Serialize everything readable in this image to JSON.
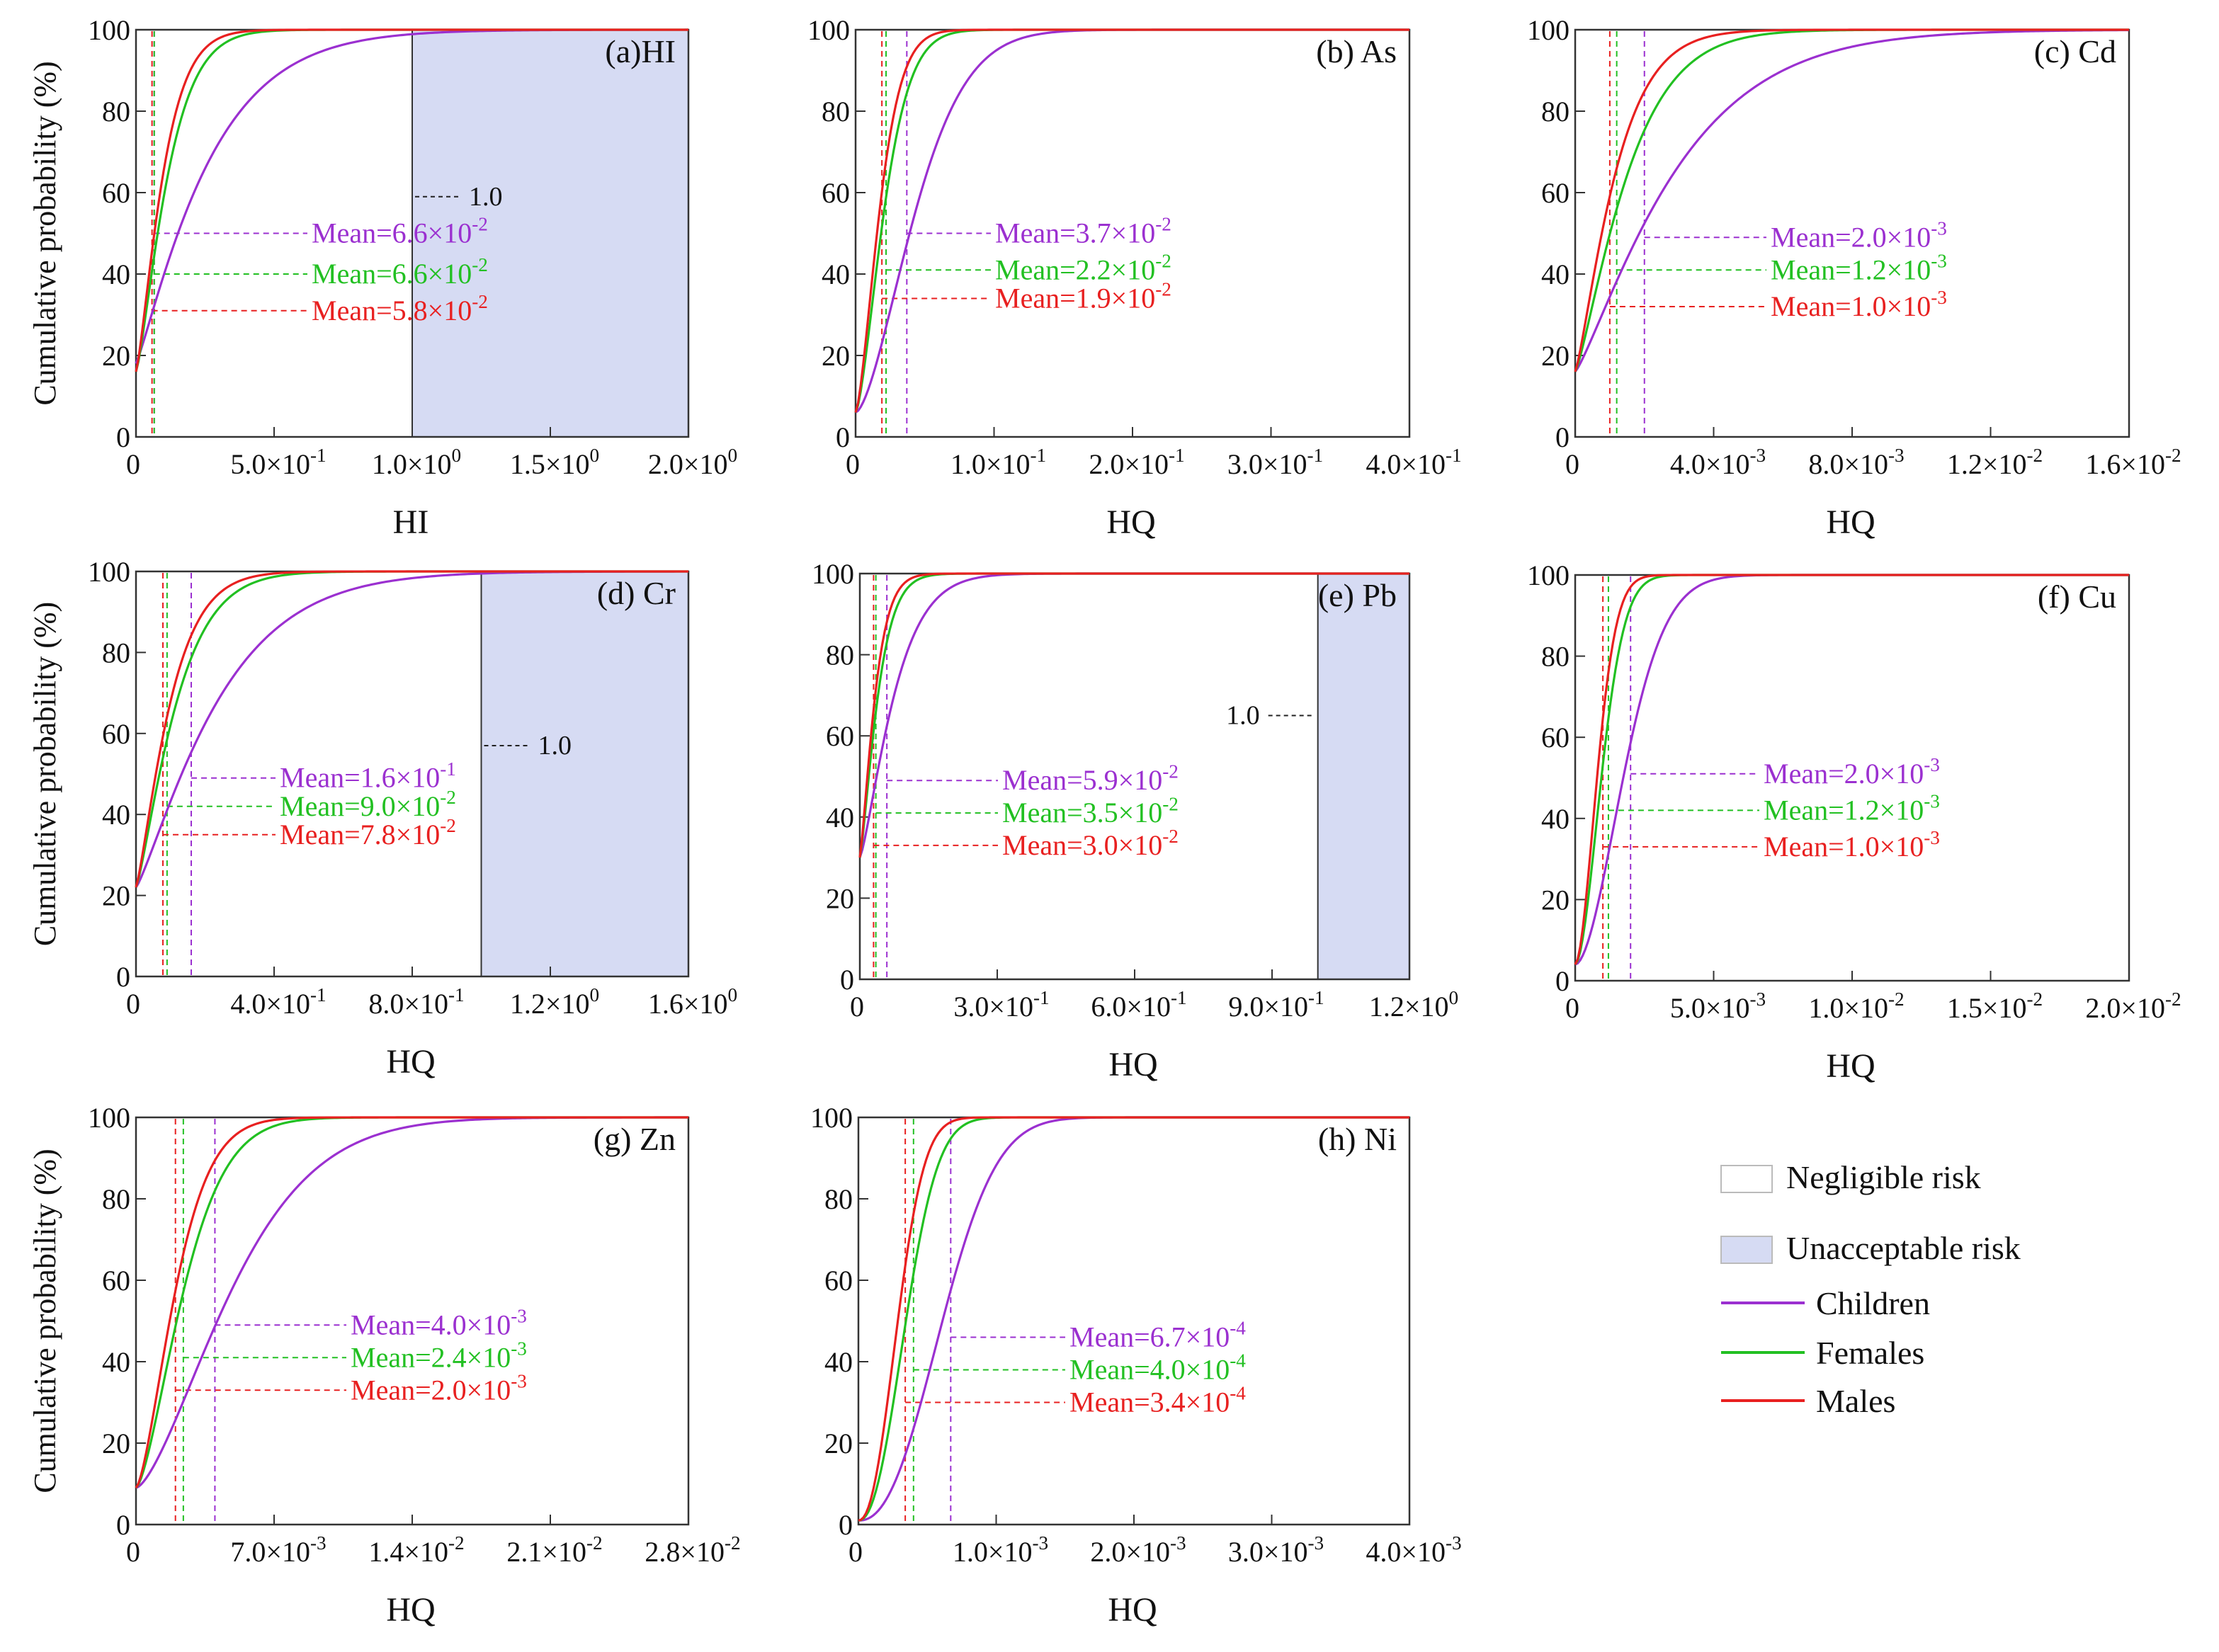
{
  "figure": {
    "series_colors": {
      "Children": "#9b30d0",
      "Females": "#22c022",
      "Males": "#e82020"
    },
    "risk_fill": "#d6dbf3",
    "legend": {
      "items": [
        {
          "label": "Negligible risk",
          "kind": "box",
          "fill": "#ffffff"
        },
        {
          "label": "Unacceptable risk",
          "kind": "box",
          "fill": "#d6dbf3"
        },
        {
          "label": "Children",
          "kind": "line",
          "color": "#9b30d0"
        },
        {
          "label": "Females",
          "kind": "line",
          "color": "#22c022"
        },
        {
          "label": "Males",
          "kind": "line",
          "color": "#e82020"
        }
      ]
    }
  },
  "chart_data": [
    {
      "type": "line",
      "id": "a",
      "title": "(a)HI",
      "xlabel": "HI",
      "ylabel": "Cumulative probability (%)",
      "xlim": [
        0,
        2.0
      ],
      "ylim": [
        0,
        100
      ],
      "xticks": [
        0,
        0.5,
        1.0,
        1.5,
        2.0
      ],
      "xtick_labels": [
        {
          "m": "0",
          "e": ""
        },
        {
          "m": "5.0×10",
          "e": "-1"
        },
        {
          "m": "1.0×10",
          "e": "0"
        },
        {
          "m": "1.5×10",
          "e": "0"
        },
        {
          "m": "2.0×10",
          "e": "0"
        }
      ],
      "yticks": [
        0,
        20,
        40,
        60,
        80,
        100
      ],
      "risk_region": [
        1.0,
        2.0
      ],
      "threshold_label": "1.0",
      "threshold_label_y": 59,
      "series": [
        {
          "name": "Children",
          "y0": 18,
          "mean": 0.066,
          "scale": 0.28,
          "shape": 1.15,
          "mean_y": 50,
          "mean_text": {
            "m": "Mean=6.6×10",
            "e": "-2"
          }
        },
        {
          "name": "Females",
          "y0": 16,
          "mean": 0.066,
          "scale": 0.13,
          "shape": 1.3,
          "mean_y": 40,
          "mean_text": {
            "m": "Mean=6.6×10",
            "e": "-2"
          }
        },
        {
          "name": "Males",
          "y0": 16,
          "mean": 0.058,
          "scale": 0.11,
          "shape": 1.3,
          "mean_y": 31,
          "mean_text": {
            "m": "Mean=5.8×10",
            "e": "-2"
          }
        }
      ]
    },
    {
      "type": "line",
      "id": "b",
      "title": "(b) As",
      "xlabel": "HQ",
      "ylabel": "",
      "xlim": [
        0,
        0.4
      ],
      "ylim": [
        0,
        100
      ],
      "xticks": [
        0,
        0.1,
        0.2,
        0.3,
        0.4
      ],
      "xtick_labels": [
        {
          "m": "0",
          "e": ""
        },
        {
          "m": "1.0×10",
          "e": "-1"
        },
        {
          "m": "2.0×10",
          "e": "-1"
        },
        {
          "m": "3.0×10",
          "e": "-1"
        },
        {
          "m": "4.0×10",
          "e": "-1"
        }
      ],
      "yticks": [
        0,
        20,
        40,
        60,
        80,
        100
      ],
      "series": [
        {
          "name": "Children",
          "y0": 6,
          "mean": 0.037,
          "scale": 0.052,
          "shape": 1.6,
          "mean_y": 50,
          "mean_text": {
            "m": "Mean=3.7×10",
            "e": "-2"
          }
        },
        {
          "name": "Females",
          "y0": 6,
          "mean": 0.022,
          "scale": 0.025,
          "shape": 1.5,
          "mean_y": 41,
          "mean_text": {
            "m": "Mean=2.2×10",
            "e": "-2"
          }
        },
        {
          "name": "Males",
          "y0": 6,
          "mean": 0.019,
          "scale": 0.021,
          "shape": 1.5,
          "mean_y": 34,
          "mean_text": {
            "m": "Mean=1.9×10",
            "e": "-2"
          }
        }
      ]
    },
    {
      "type": "line",
      "id": "c",
      "title": "(c) Cd",
      "xlabel": "HQ",
      "ylabel": "",
      "xlim": [
        0,
        0.016
      ],
      "ylim": [
        0,
        100
      ],
      "xticks": [
        0,
        0.004,
        0.008,
        0.012,
        0.016
      ],
      "xtick_labels": [
        {
          "m": "0",
          "e": ""
        },
        {
          "m": "4.0×10",
          "e": "-3"
        },
        {
          "m": "8.0×10",
          "e": "-3"
        },
        {
          "m": "1.2×10",
          "e": "-2"
        },
        {
          "m": "1.6×10",
          "e": "-2"
        }
      ],
      "yticks": [
        0,
        20,
        40,
        60,
        80,
        100
      ],
      "series": [
        {
          "name": "Children",
          "y0": 16,
          "mean": 0.002,
          "scale": 0.0032,
          "shape": 1.2,
          "mean_y": 49,
          "mean_text": {
            "m": "Mean=2.0×10",
            "e": "-3"
          }
        },
        {
          "name": "Females",
          "y0": 16,
          "mean": 0.0012,
          "scale": 0.0017,
          "shape": 1.25,
          "mean_y": 41,
          "mean_text": {
            "m": "Mean=1.2×10",
            "e": "-3"
          }
        },
        {
          "name": "Males",
          "y0": 16,
          "mean": 0.001,
          "scale": 0.0013,
          "shape": 1.25,
          "mean_y": 32,
          "mean_text": {
            "m": "Mean=1.0×10",
            "e": "-3"
          }
        }
      ]
    },
    {
      "type": "line",
      "id": "d",
      "title": "(d) Cr",
      "xlabel": "HQ",
      "ylabel": "Cumulative probability (%)",
      "xlim": [
        0,
        1.6
      ],
      "ylim": [
        0,
        100
      ],
      "xticks": [
        0,
        0.4,
        0.8,
        1.2,
        1.6
      ],
      "xtick_labels": [
        {
          "m": "0",
          "e": ""
        },
        {
          "m": "4.0×10",
          "e": "-1"
        },
        {
          "m": "8.0×10",
          "e": "-1"
        },
        {
          "m": "1.2×10",
          "e": "0"
        },
        {
          "m": "1.6×10",
          "e": "0"
        }
      ],
      "yticks": [
        0,
        20,
        40,
        60,
        80,
        100
      ],
      "risk_region": [
        1.0,
        1.6
      ],
      "threshold_label": "1.0",
      "threshold_label_y": 57,
      "series": [
        {
          "name": "Children",
          "y0": 22,
          "mean": 0.16,
          "scale": 0.26,
          "shape": 1.2,
          "mean_y": 49,
          "mean_text": {
            "m": "Mean=1.6×10",
            "e": "-1"
          }
        },
        {
          "name": "Females",
          "y0": 22,
          "mean": 0.09,
          "scale": 0.13,
          "shape": 1.25,
          "mean_y": 42,
          "mean_text": {
            "m": "Mean=9.0×10",
            "e": "-2"
          }
        },
        {
          "name": "Males",
          "y0": 22,
          "mean": 0.078,
          "scale": 0.11,
          "shape": 1.25,
          "mean_y": 35,
          "mean_text": {
            "m": "Mean=7.8×10",
            "e": "-2"
          }
        }
      ]
    },
    {
      "type": "line",
      "id": "e",
      "title": "(e) Pb",
      "xlabel": "HQ",
      "ylabel": "",
      "xlim": [
        0,
        1.2
      ],
      "ylim": [
        0,
        100
      ],
      "xticks": [
        0,
        0.3,
        0.6,
        0.9,
        1.2
      ],
      "xtick_labels": [
        {
          "m": "0",
          "e": ""
        },
        {
          "m": "3.0×10",
          "e": "-1"
        },
        {
          "m": "6.0×10",
          "e": "-1"
        },
        {
          "m": "9.0×10",
          "e": "-1"
        },
        {
          "m": "1.2×10",
          "e": "0"
        }
      ],
      "yticks": [
        0,
        20,
        40,
        60,
        80,
        100
      ],
      "risk_region": [
        1.0,
        1.2
      ],
      "threshold_label": "1.0",
      "threshold_label_y": 65,
      "threshold_label_side": "left",
      "series": [
        {
          "name": "Children",
          "y0": 30,
          "mean": 0.059,
          "scale": 0.085,
          "shape": 1.3,
          "mean_y": 49,
          "mean_text": {
            "m": "Mean=5.9×10",
            "e": "-2"
          }
        },
        {
          "name": "Females",
          "y0": 30,
          "mean": 0.035,
          "scale": 0.045,
          "shape": 1.3,
          "mean_y": 41,
          "mean_text": {
            "m": "Mean=3.5×10",
            "e": "-2"
          }
        },
        {
          "name": "Males",
          "y0": 30,
          "mean": 0.03,
          "scale": 0.038,
          "shape": 1.3,
          "mean_y": 33,
          "mean_text": {
            "m": "Mean=3.0×10",
            "e": "-2"
          }
        }
      ]
    },
    {
      "type": "line",
      "id": "f",
      "title": "(f) Cu",
      "xlabel": "HQ",
      "ylabel": "",
      "xlim": [
        0,
        0.02
      ],
      "ylim": [
        0,
        100
      ],
      "xticks": [
        0,
        0.005,
        0.01,
        0.015,
        0.02
      ],
      "xtick_labels": [
        {
          "m": "0",
          "e": ""
        },
        {
          "m": "5.0×10",
          "e": "-3"
        },
        {
          "m": "1.0×10",
          "e": "-2"
        },
        {
          "m": "1.5×10",
          "e": "-2"
        },
        {
          "m": "2.0×10",
          "e": "-2"
        }
      ],
      "yticks": [
        0,
        20,
        40,
        60,
        80,
        100
      ],
      "series": [
        {
          "name": "Children",
          "y0": 4,
          "mean": 0.002,
          "scale": 0.0022,
          "shape": 1.8,
          "mean_y": 51,
          "mean_text": {
            "m": "Mean=2.0×10",
            "e": "-3"
          }
        },
        {
          "name": "Females",
          "y0": 4,
          "mean": 0.0012,
          "scale": 0.0012,
          "shape": 1.8,
          "mean_y": 42,
          "mean_text": {
            "m": "Mean=1.2×10",
            "e": "-3"
          }
        },
        {
          "name": "Males",
          "y0": 4,
          "mean": 0.001,
          "scale": 0.001,
          "shape": 1.8,
          "mean_y": 33,
          "mean_text": {
            "m": "Mean=1.0×10",
            "e": "-3"
          }
        }
      ]
    },
    {
      "type": "line",
      "id": "g",
      "title": "(g) Zn",
      "xlabel": "HQ",
      "ylabel": "Cumulative probability (%)",
      "xlim": [
        0,
        0.028
      ],
      "ylim": [
        0,
        100
      ],
      "xticks": [
        0,
        0.007,
        0.014,
        0.021,
        0.028
      ],
      "xtick_labels": [
        {
          "m": "0",
          "e": ""
        },
        {
          "m": "7.0×10",
          "e": "-3"
        },
        {
          "m": "1.4×10",
          "e": "-2"
        },
        {
          "m": "2.1×10",
          "e": "-2"
        },
        {
          "m": "2.8×10",
          "e": "-2"
        }
      ],
      "yticks": [
        0,
        20,
        40,
        60,
        80,
        100
      ],
      "series": [
        {
          "name": "Children",
          "y0": 9,
          "mean": 0.004,
          "scale": 0.0058,
          "shape": 1.5,
          "mean_y": 49,
          "mean_text": {
            "m": "Mean=4.0×10",
            "e": "-3"
          }
        },
        {
          "name": "Females",
          "y0": 9,
          "mean": 0.0024,
          "scale": 0.0029,
          "shape": 1.5,
          "mean_y": 41,
          "mean_text": {
            "m": "Mean=2.4×10",
            "e": "-3"
          }
        },
        {
          "name": "Males",
          "y0": 9,
          "mean": 0.002,
          "scale": 0.0024,
          "shape": 1.5,
          "mean_y": 33,
          "mean_text": {
            "m": "Mean=2.0×10",
            "e": "-3"
          }
        }
      ]
    },
    {
      "type": "line",
      "id": "h",
      "title": "(h) Ni",
      "xlabel": "HQ",
      "ylabel": "",
      "xlim": [
        0,
        0.004
      ],
      "ylim": [
        0,
        100
      ],
      "xticks": [
        0,
        0.001,
        0.002,
        0.003,
        0.004
      ],
      "xtick_labels": [
        {
          "m": "0",
          "e": ""
        },
        {
          "m": "1.0×10",
          "e": "-3"
        },
        {
          "m": "2.0×10",
          "e": "-3"
        },
        {
          "m": "3.0×10",
          "e": "-3"
        },
        {
          "m": "4.0×10",
          "e": "-3"
        }
      ],
      "yticks": [
        0,
        20,
        40,
        60,
        80,
        100
      ],
      "series": [
        {
          "name": "Children",
          "y0": 1,
          "mean": 0.00067,
          "scale": 0.00072,
          "shape": 2.3,
          "mean_y": 46,
          "mean_text": {
            "m": "Mean=6.7×10",
            "e": "-4"
          }
        },
        {
          "name": "Females",
          "y0": 1,
          "mean": 0.0004,
          "scale": 0.00041,
          "shape": 2.2,
          "mean_y": 38,
          "mean_text": {
            "m": "Mean=4.0×10",
            "e": "-4"
          }
        },
        {
          "name": "Males",
          "y0": 1,
          "mean": 0.00034,
          "scale": 0.00034,
          "shape": 2.2,
          "mean_y": 30,
          "mean_text": {
            "m": "Mean=3.4×10",
            "e": "-4"
          }
        }
      ]
    }
  ]
}
